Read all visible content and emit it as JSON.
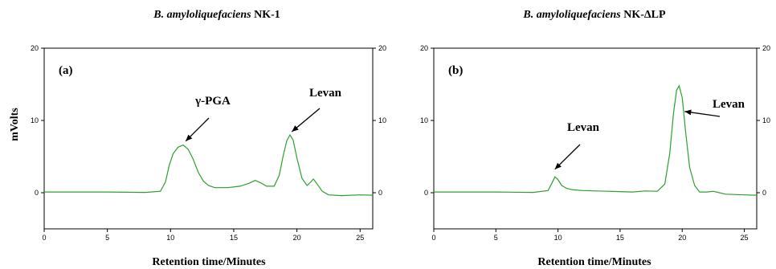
{
  "figure": {
    "ylabel": "mVolts",
    "xlabel": "Retention time/Minutes"
  },
  "chart_data": [
    {
      "type": "line",
      "panel_label": "(a)",
      "title_italic": "B. amyloliquefaciens",
      "title_rest": " NK-1",
      "xlabel": "Retention time/Minutes",
      "ylabel": "mVolts",
      "xlim": [
        0,
        26
      ],
      "ylim": [
        -5,
        20
      ],
      "x_ticks": [
        0,
        5,
        10,
        15,
        20,
        25
      ],
      "y_ticks_left": [
        20,
        10,
        0
      ],
      "y_ticks_right": [
        20,
        10,
        0
      ],
      "series": [
        {
          "x": [
            0,
            5,
            8,
            9.2,
            9.6,
            9.9,
            10.2,
            10.6,
            11.0,
            11.4,
            11.8,
            12.2,
            12.6,
            13.0,
            13.5,
            14.5,
            15.5,
            16.2,
            16.7,
            17.1,
            17.6,
            18.2,
            18.6,
            18.9,
            19.2,
            19.45,
            19.7,
            20.0,
            20.4,
            20.8,
            21.1,
            21.3,
            21.6,
            22.0,
            22.5,
            23.5,
            25,
            26
          ],
          "y": [
            0.1,
            0.1,
            0.05,
            0.2,
            1.5,
            3.8,
            5.4,
            6.3,
            6.6,
            6.0,
            4.6,
            2.8,
            1.6,
            1.0,
            0.7,
            0.7,
            0.9,
            1.3,
            1.7,
            1.4,
            0.9,
            0.9,
            2.4,
            5.0,
            7.2,
            8.0,
            7.3,
            4.8,
            2.0,
            1.0,
            1.5,
            1.9,
            1.2,
            0.2,
            -0.3,
            -0.4,
            -0.3,
            -0.35
          ]
        }
      ],
      "annotations": [
        {
          "text": "γ-PGA",
          "target_x": 11.2,
          "target_y": 6.7
        },
        {
          "text": "Levan",
          "target_x": 19.6,
          "target_y": 8.0
        }
      ]
    },
    {
      "type": "line",
      "panel_label": "(b)",
      "title_italic": "B. amyloliquefaciens",
      "title_rest": " NK-ΔLP",
      "xlabel": "Retention time/Minutes",
      "ylabel": "",
      "xlim": [
        0,
        26
      ],
      "ylim": [
        -5,
        20
      ],
      "x_ticks": [
        0,
        5,
        10,
        15,
        20,
        25
      ],
      "y_ticks_left": [
        20,
        10,
        0
      ],
      "y_ticks_right": [
        20,
        10,
        0
      ],
      "series": [
        {
          "x": [
            0,
            5,
            8,
            9.2,
            9.5,
            9.75,
            10.0,
            10.3,
            10.7,
            11.2,
            12,
            14,
            16,
            17,
            18,
            18.6,
            19.0,
            19.3,
            19.55,
            19.75,
            20.0,
            20.3,
            20.6,
            21.0,
            21.4,
            22.0,
            22.5,
            23.5,
            25,
            26
          ],
          "y": [
            0.1,
            0.1,
            0.05,
            0.3,
            1.3,
            2.2,
            1.8,
            1.0,
            0.6,
            0.4,
            0.3,
            0.2,
            0.1,
            0.25,
            0.2,
            1.2,
            5.5,
            11.0,
            14.2,
            14.8,
            13.2,
            8.0,
            3.5,
            1.0,
            0.1,
            0.1,
            0.2,
            -0.2,
            -0.3,
            -0.35
          ]
        }
      ],
      "annotations": [
        {
          "text": "Levan",
          "target_x": 9.75,
          "target_y": 2.8
        },
        {
          "text": "Levan",
          "target_x": 20.2,
          "target_y": 10.8
        }
      ]
    }
  ]
}
